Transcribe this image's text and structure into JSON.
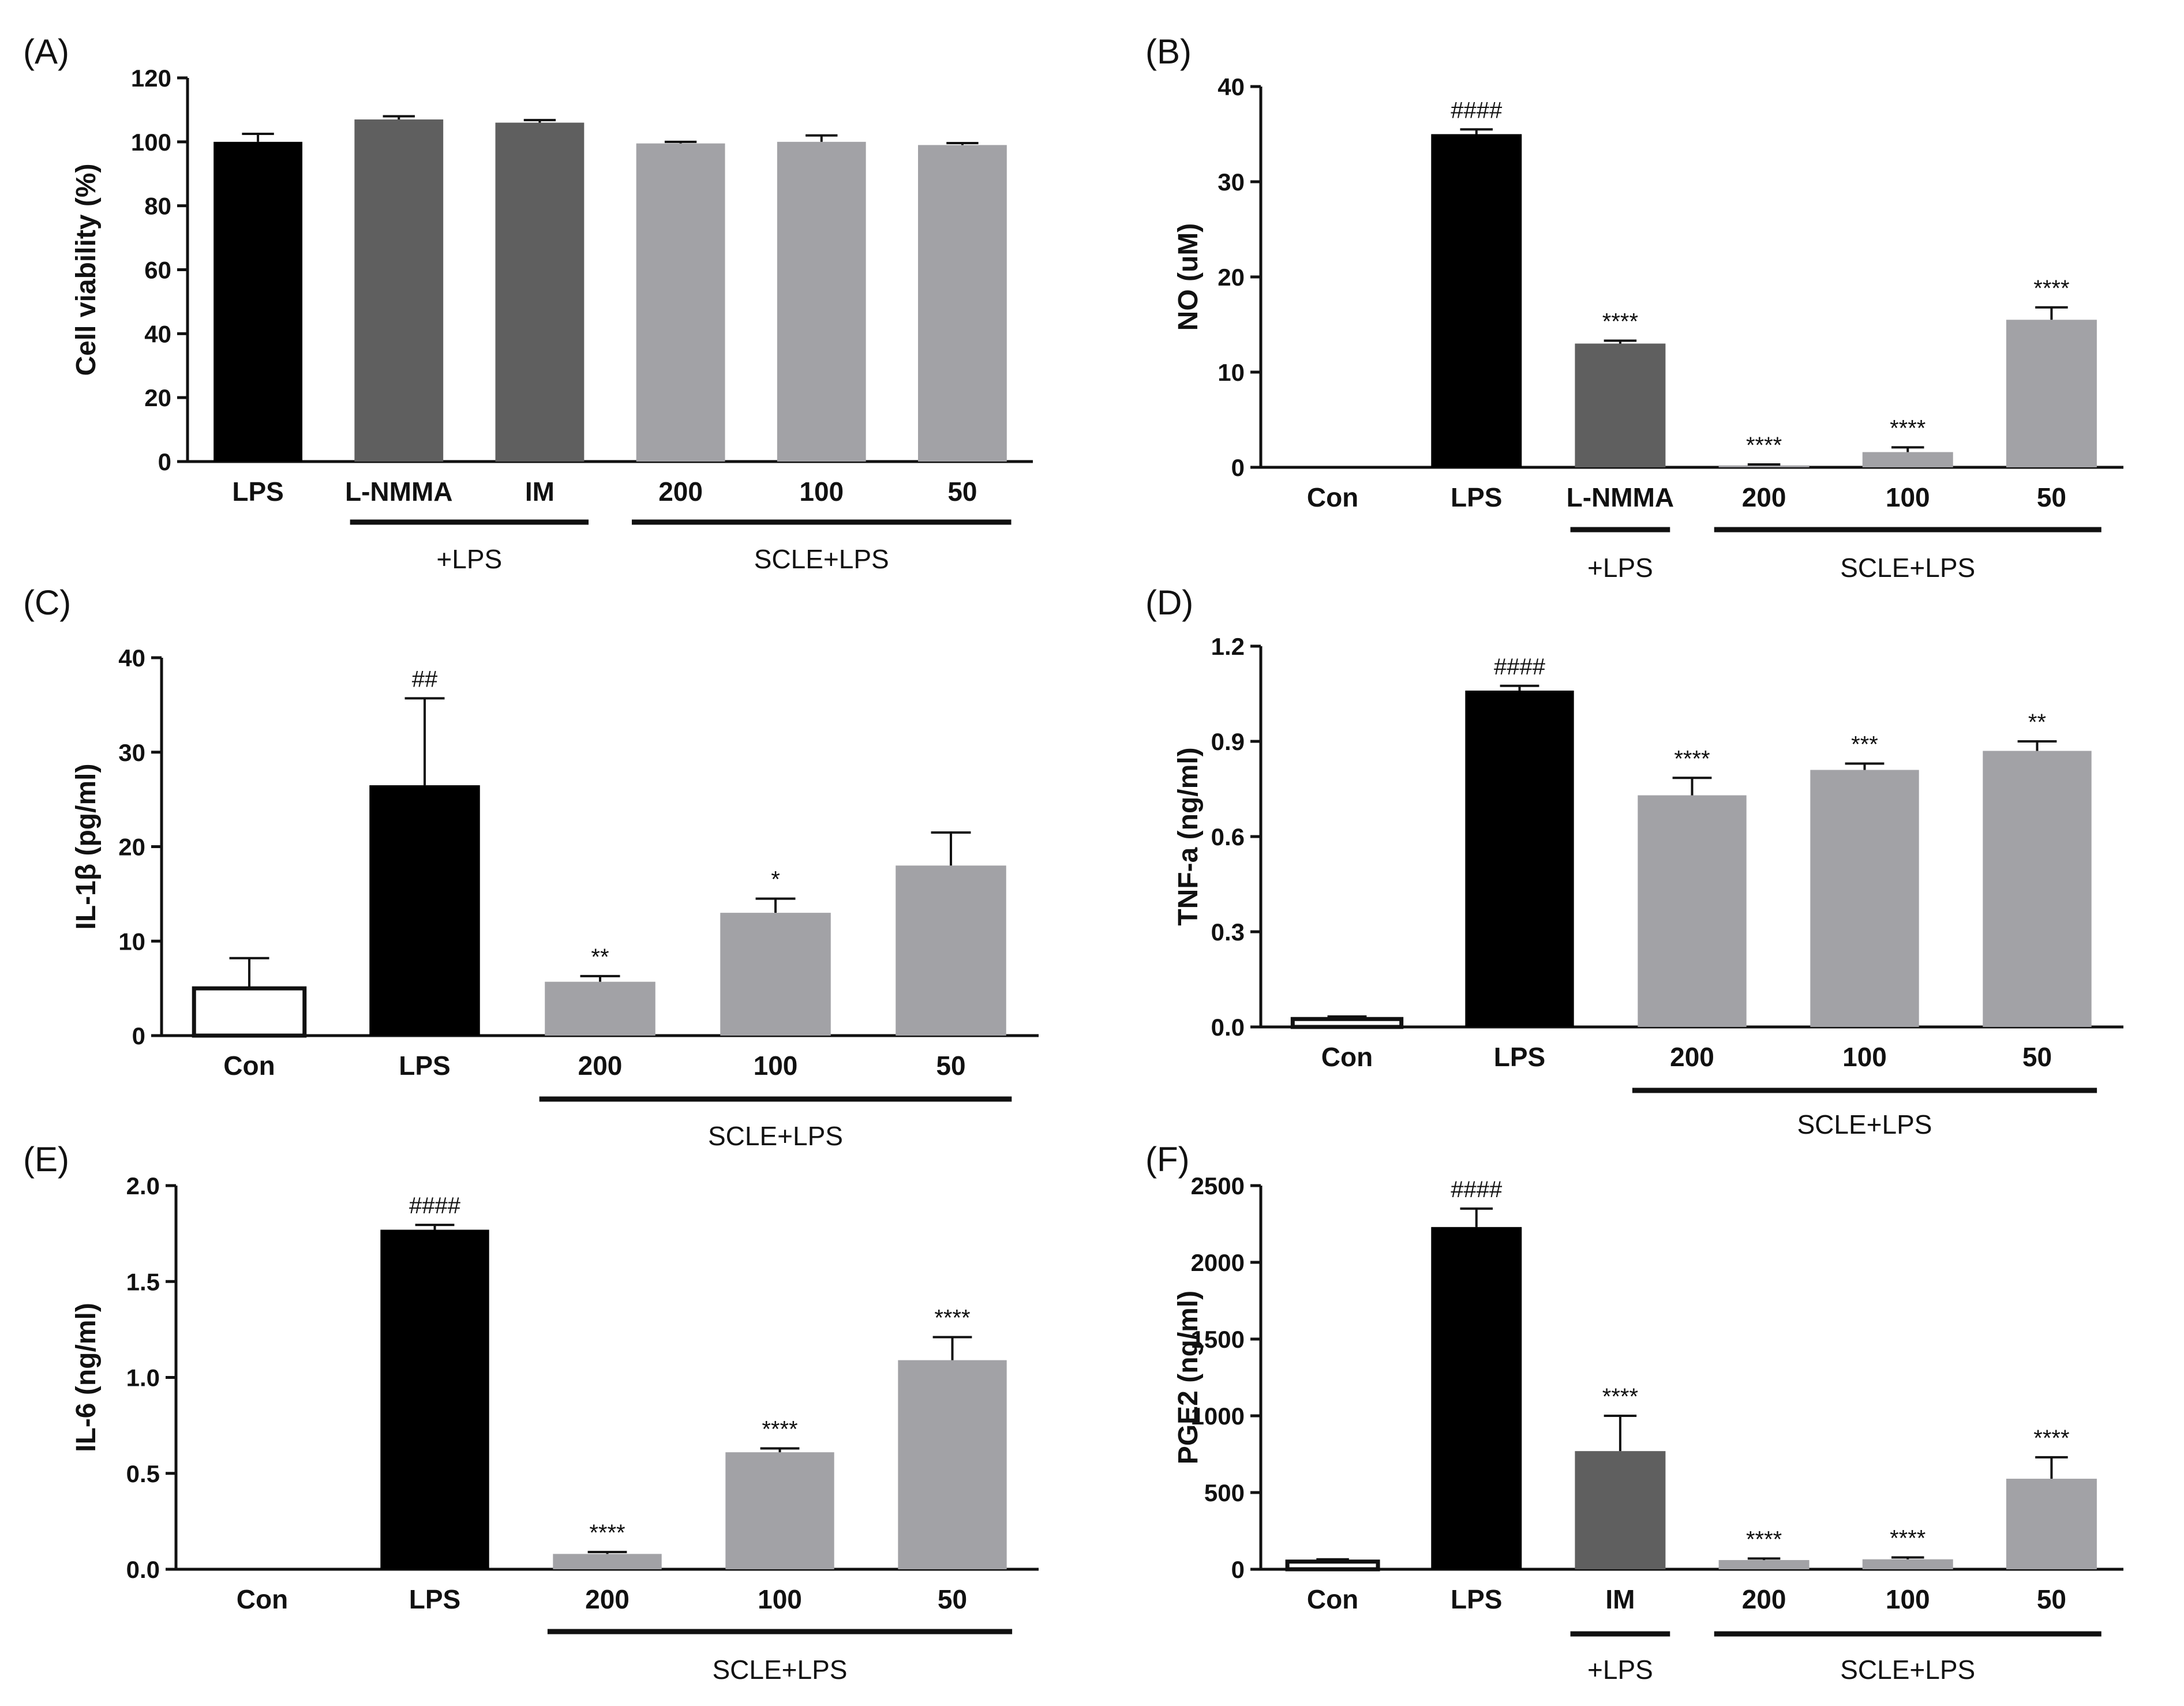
{
  "figure": {
    "panels": [
      "(A)",
      "(B)",
      "(C)",
      "(D)",
      "(E)",
      "(F)"
    ]
  },
  "colors": {
    "black": "#000000",
    "dark_gray": "#5f5f5f",
    "light_gray": "#a2a2a6",
    "white": "#ffffff"
  },
  "chart_data": [
    {
      "panel": "(A)",
      "type": "bar",
      "ylabel": "Cell viability (%)",
      "ylim": [
        0,
        120
      ],
      "yticks": [
        0,
        20,
        40,
        60,
        80,
        100,
        120
      ],
      "categories": [
        "LPS",
        "L-NMMA",
        "IM",
        "200",
        "100",
        "50"
      ],
      "values": [
        100,
        107,
        106,
        99.5,
        100,
        99
      ],
      "errors": [
        2.5,
        1.0,
        0.8,
        0.5,
        2.0,
        0.6
      ],
      "colors": [
        "black",
        "dark_gray",
        "dark_gray",
        "light_gray",
        "light_gray",
        "light_gray"
      ],
      "annotations": [
        "",
        "",
        "",
        "",
        "",
        ""
      ],
      "groups": [
        {
          "label": "+LPS",
          "from": 1,
          "to": 2
        },
        {
          "label": "SCLE+LPS",
          "from": 3,
          "to": 5
        }
      ]
    },
    {
      "panel": "(B)",
      "type": "bar",
      "ylabel": "NO (uM)",
      "ylim": [
        0,
        40
      ],
      "yticks": [
        0,
        10,
        20,
        30,
        40
      ],
      "categories": [
        "Con",
        "LPS",
        "L-NMMA",
        "200",
        "100",
        "50"
      ],
      "values": [
        0,
        35,
        13,
        0.2,
        1.6,
        15.5
      ],
      "errors": [
        0,
        0.5,
        0.3,
        0.1,
        0.5,
        1.3
      ],
      "colors": [
        "white",
        "black",
        "dark_gray",
        "light_gray",
        "light_gray",
        "light_gray"
      ],
      "annotations": [
        "",
        "####",
        "****",
        "****",
        "****",
        "****"
      ],
      "groups": [
        {
          "label": "+LPS",
          "from": 2,
          "to": 2
        },
        {
          "label": "SCLE+LPS",
          "from": 3,
          "to": 5
        }
      ]
    },
    {
      "panel": "(C)",
      "type": "bar",
      "ylabel": "IL-1β (pg/ml)",
      "ylim": [
        0,
        40
      ],
      "yticks": [
        0,
        10,
        20,
        30,
        40
      ],
      "categories": [
        "Con",
        "LPS",
        "200",
        "100",
        "50"
      ],
      "values": [
        5,
        26.5,
        5.7,
        13,
        18
      ],
      "errors": [
        3.2,
        9.2,
        0.6,
        1.5,
        3.5
      ],
      "colors": [
        "white",
        "black",
        "light_gray",
        "light_gray",
        "light_gray"
      ],
      "annotations": [
        "",
        "##",
        "**",
        "*",
        ""
      ],
      "groups": [
        {
          "label": "SCLE+LPS",
          "from": 2,
          "to": 4
        }
      ]
    },
    {
      "panel": "(D)",
      "type": "bar",
      "ylabel": "TNF-a (ng/ml)",
      "ylim": [
        0,
        1.2
      ],
      "yticks": [
        0.0,
        0.3,
        0.6,
        0.9,
        1.2
      ],
      "ytick_labels": [
        "0.0",
        "0.3",
        "0.6",
        "0.9",
        "1.2"
      ],
      "categories": [
        "Con",
        "LPS",
        "200",
        "100",
        "50"
      ],
      "values": [
        0.025,
        1.06,
        0.73,
        0.81,
        0.87
      ],
      "errors": [
        0.008,
        0.015,
        0.055,
        0.02,
        0.03
      ],
      "colors": [
        "white",
        "black",
        "light_gray",
        "light_gray",
        "light_gray"
      ],
      "annotations": [
        "",
        "####",
        "****",
        "***",
        "**"
      ],
      "groups": [
        {
          "label": "SCLE+LPS",
          "from": 2,
          "to": 4
        }
      ]
    },
    {
      "panel": "(E)",
      "type": "bar",
      "ylabel": "IL-6 (ng/ml)",
      "ylim": [
        0,
        2.0
      ],
      "yticks": [
        0.0,
        0.5,
        1.0,
        1.5,
        2.0
      ],
      "ytick_labels": [
        "0.0",
        "0.5",
        "1.0",
        "1.5",
        "2.0"
      ],
      "categories": [
        "Con",
        "LPS",
        "200",
        "100",
        "50"
      ],
      "values": [
        0,
        1.77,
        0.08,
        0.61,
        1.09
      ],
      "errors": [
        0,
        0.025,
        0.01,
        0.02,
        0.12
      ],
      "colors": [
        "white",
        "black",
        "light_gray",
        "light_gray",
        "light_gray"
      ],
      "annotations": [
        "",
        "####",
        "****",
        "****",
        "****"
      ],
      "groups": [
        {
          "label": "SCLE+LPS",
          "from": 2,
          "to": 4
        }
      ]
    },
    {
      "panel": "(F)",
      "type": "bar",
      "ylabel": "PGE2 (ng/ml)",
      "ylim": [
        0,
        2500
      ],
      "yticks": [
        0,
        500,
        1000,
        1500,
        2000,
        2500
      ],
      "categories": [
        "Con",
        "LPS",
        "IM",
        "200",
        "100",
        "50"
      ],
      "values": [
        50,
        2230,
        770,
        60,
        65,
        590
      ],
      "errors": [
        15,
        120,
        230,
        10,
        12,
        140
      ],
      "colors": [
        "white",
        "black",
        "dark_gray",
        "light_gray",
        "light_gray",
        "light_gray"
      ],
      "annotations": [
        "",
        "####",
        "****",
        "****",
        "****",
        "****"
      ],
      "groups": [
        {
          "label": "+LPS",
          "from": 2,
          "to": 2
        },
        {
          "label": "SCLE+LPS",
          "from": 3,
          "to": 5
        }
      ]
    }
  ]
}
